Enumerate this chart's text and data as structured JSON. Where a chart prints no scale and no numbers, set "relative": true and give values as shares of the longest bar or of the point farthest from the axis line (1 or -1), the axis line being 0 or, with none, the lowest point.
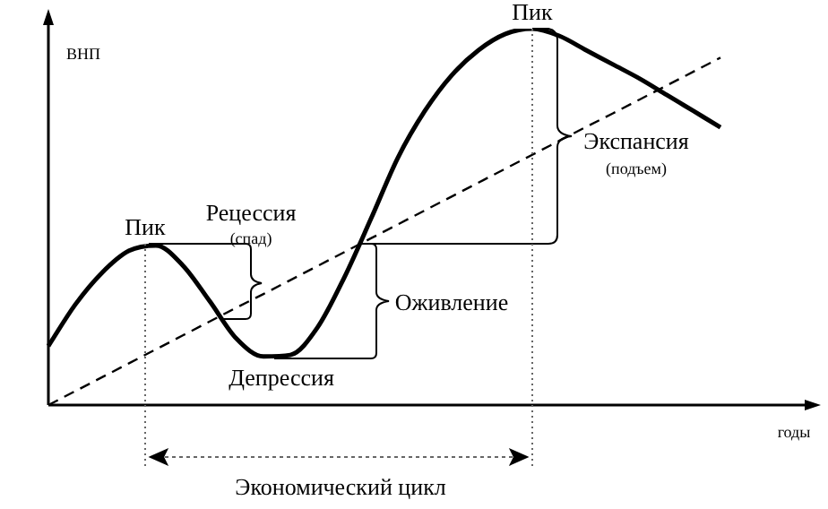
{
  "chart_data": {
    "type": "line",
    "relative": true,
    "xlabel": "годы",
    "ylabel": "ВНП",
    "categories": [
      null,
      null,
      null,
      null,
      null,
      null,
      null,
      null,
      null,
      null,
      null,
      null,
      null,
      null,
      null,
      null,
      null,
      null,
      null,
      null,
      null,
      null,
      null,
      null,
      null,
      null
    ],
    "series": [
      {
        "color": "#000000",
        "values": [
          0.157,
          0.267,
          0.352,
          0.41,
          0.424,
          0.371,
          0.276,
          0.176,
          0.129,
          0.133,
          0.205,
          0.338,
          0.495,
          0.657,
          0.781,
          0.876,
          0.943,
          0.986,
          1,
          0.981,
          0.943,
          0.905,
          0.867,
          0.824,
          0.781,
          0.738
        ]
      },
      {
        "color": "#000000",
        "line_style": "dashed",
        "values": [
          0,
          0.037,
          0.074,
          0.111,
          0.148,
          0.185,
          0.222,
          0.259,
          0.295,
          0.332,
          0.369,
          0.406,
          0.443,
          0.48,
          0.517,
          0.554,
          0.591,
          0.628,
          0.665,
          0.702,
          0.739,
          0.775,
          0.812,
          0.849,
          0.886,
          0.923
        ]
      }
    ],
    "annotations": [
      "Пик",
      "Рецессия",
      "(спад)",
      "Пик",
      "Экспансия",
      "(подъем)",
      "Оживление",
      "Депрессия",
      "Экономический цикл"
    ],
    "marker": "none",
    "legend": false
  }
}
